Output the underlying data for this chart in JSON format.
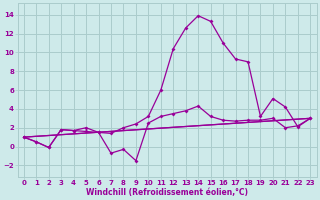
{
  "xlabel": "Windchill (Refroidissement éolien,°C)",
  "background_color": "#ceeaea",
  "grid_color": "#aacccc",
  "line_color": "#990099",
  "xlim": [
    -0.5,
    23.5
  ],
  "ylim": [
    -3.2,
    15.2
  ],
  "xticks": [
    0,
    1,
    2,
    3,
    4,
    5,
    6,
    7,
    8,
    9,
    10,
    11,
    12,
    13,
    14,
    15,
    16,
    17,
    18,
    19,
    20,
    21,
    22,
    23
  ],
  "yticks": [
    -2,
    0,
    2,
    4,
    6,
    8,
    10,
    12,
    14
  ],
  "line1_x": [
    0,
    1,
    2,
    3,
    4,
    5,
    6,
    7,
    8,
    9,
    10,
    11,
    12,
    13,
    14,
    15,
    16,
    17,
    18,
    19,
    20,
    21,
    22,
    23
  ],
  "line1_y": [
    1.0,
    0.5,
    -0.1,
    1.8,
    1.7,
    1.6,
    1.5,
    1.4,
    2.0,
    2.4,
    3.2,
    6.0,
    10.4,
    12.6,
    13.9,
    13.3,
    11.0,
    9.3,
    9.0,
    3.2,
    5.1,
    4.2,
    2.1,
    3.0
  ],
  "line2_x": [
    0,
    1,
    2,
    3,
    4,
    5,
    6,
    7,
    8,
    9,
    10,
    11,
    12,
    13,
    14,
    15,
    16,
    17,
    18,
    19,
    20,
    21,
    22,
    23
  ],
  "line2_y": [
    1.0,
    0.5,
    -0.1,
    1.8,
    1.7,
    2.0,
    1.5,
    -0.7,
    -0.3,
    -1.5,
    2.5,
    3.2,
    3.5,
    3.8,
    4.3,
    3.2,
    2.8,
    2.7,
    2.8,
    2.8,
    3.0,
    2.0,
    2.2,
    3.0
  ],
  "line3_x": [
    0,
    23
  ],
  "line3_y": [
    1.0,
    3.0
  ],
  "line4_x": [
    0,
    23
  ],
  "line4_y": [
    1.0,
    3.0
  ],
  "tick_fontsize": 5.0,
  "xlabel_fontsize": 5.5,
  "marker_size": 2.0,
  "line_width": 0.9
}
